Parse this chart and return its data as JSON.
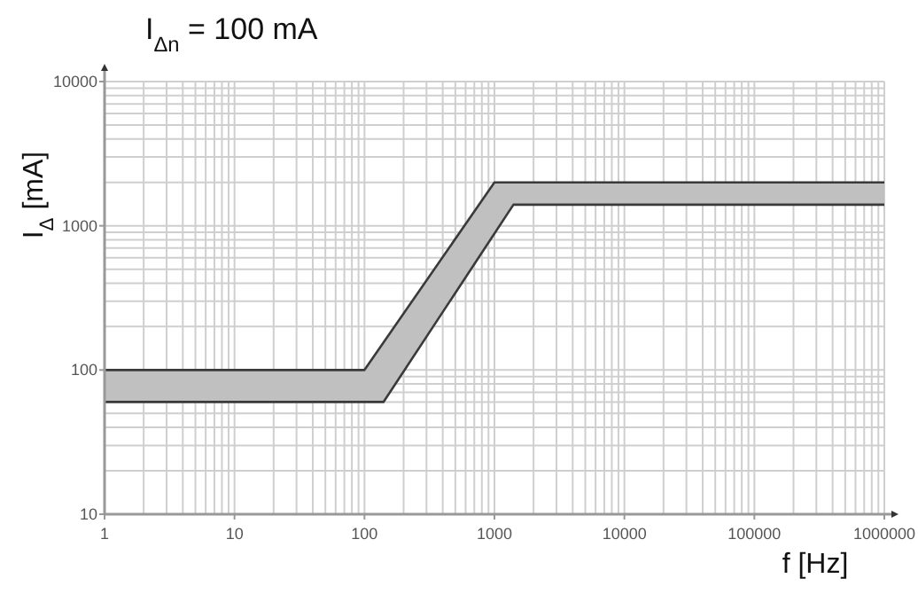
{
  "chart_data": {
    "type": "line",
    "title": "I$_{Δn}$ = 100 mA",
    "xlabel": "f [Hz]",
    "ylabel": "I$_{Δ}$ [mA]",
    "log": "xy",
    "grid": true,
    "series": [
      {
        "color": "#3a3a3a",
        "x": [
          1,
          100,
          1000,
          1000000
        ],
        "values": [
          100,
          100,
          2000,
          2000
        ]
      },
      {
        "color": "#3a3a3a",
        "x": [
          1,
          140,
          1400,
          1000000
        ],
        "values": [
          60,
          60,
          1400,
          1400
        ]
      }
    ],
    "xlim": [
      1,
      1000000
    ],
    "xticks": [
      1,
      10,
      100,
      1000,
      10000,
      100000,
      1000000
    ],
    "ylim": [
      10,
      10000
    ],
    "yticks": [
      10,
      100,
      1000,
      10000
    ]
  }
}
